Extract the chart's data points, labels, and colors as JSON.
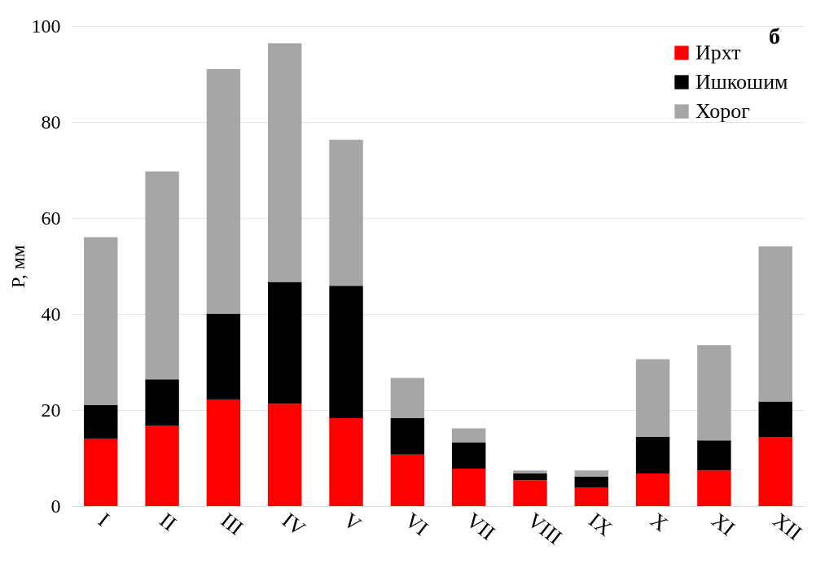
{
  "chart_data": {
    "type": "bar",
    "stacked": true,
    "ylabel": "P, мм",
    "annotations": [
      "б"
    ],
    "categories": [
      "I",
      "II",
      "III",
      "IV",
      "V",
      "VI",
      "VII",
      "VIII",
      "IX",
      "X",
      "XI",
      "XII"
    ],
    "series": [
      {
        "name": "Ирхт",
        "color": "#ff0000",
        "values": [
          14,
          16.8,
          22.2,
          21.3,
          18.3,
          10.7,
          7.8,
          5.4,
          3.9,
          6.8,
          7.4,
          14.4
        ]
      },
      {
        "name": "Ишкошим",
        "color": "#000000",
        "values": [
          7,
          9.6,
          17.9,
          25.4,
          27.6,
          7.6,
          5.4,
          1.4,
          2.2,
          7.6,
          6.3,
          7.4
        ]
      },
      {
        "name": "Хорог",
        "color": "#a6a6a6",
        "values": [
          35,
          43.3,
          50.9,
          49.7,
          30.4,
          8.4,
          3,
          0.6,
          1.3,
          16.2,
          19.8,
          32.3
        ]
      }
    ],
    "ylim": [
      0,
      100
    ],
    "yticks": [
      0,
      20,
      40,
      60,
      80,
      100
    ],
    "grid": "y",
    "legend": "top right"
  }
}
